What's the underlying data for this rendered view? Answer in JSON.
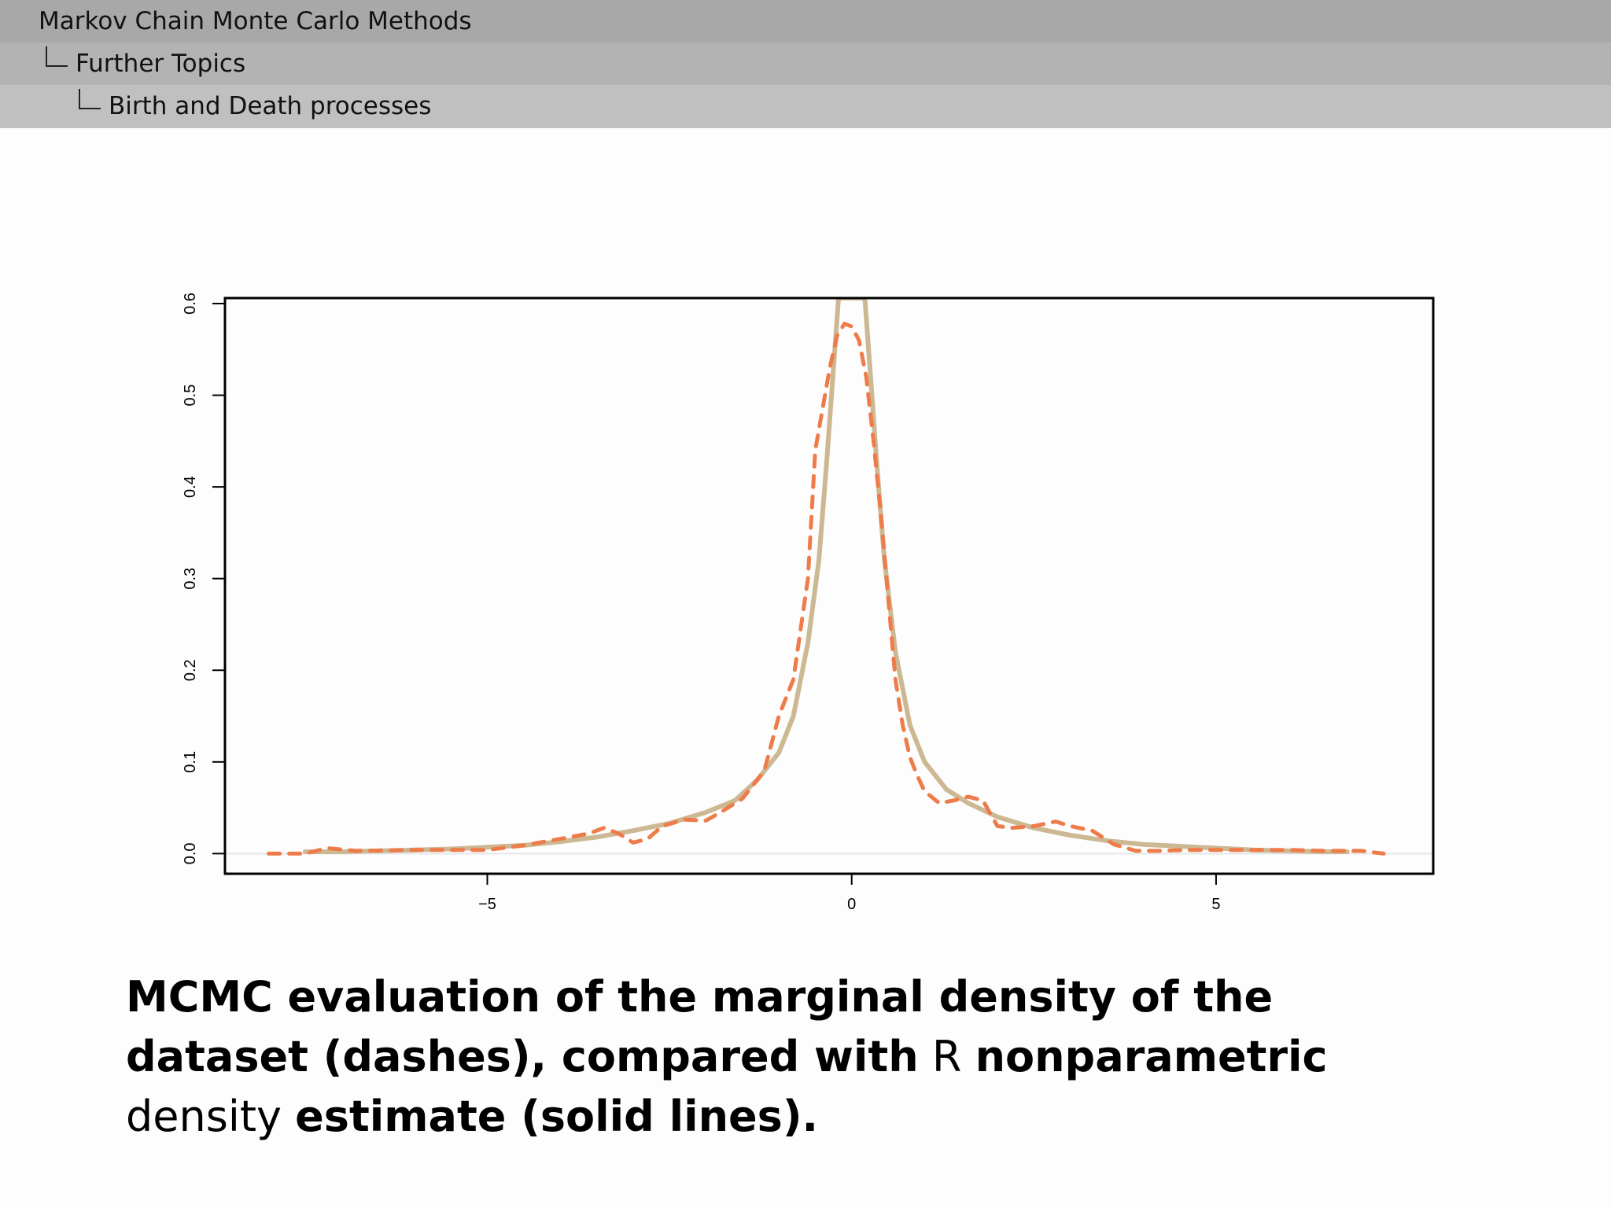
{
  "breadcrumb": {
    "level1": "Markov Chain Monte Carlo Methods",
    "level2": "Further Topics",
    "level3": "Birth and Death processes"
  },
  "caption": {
    "part1": "MCMC evaluation of the marginal density of the dataset (dashes), compared with",
    "r_letter": "R",
    "part2": "nonparametric",
    "part3": "density",
    "part4": "estimate (solid lines)."
  },
  "chart_data": {
    "type": "line",
    "xlim": [
      -8.6,
      7.98
    ],
    "ylim": [
      -0.022,
      0.606
    ],
    "x_ticks": [
      -5,
      0,
      5
    ],
    "x_tick_labels": [
      "−5",
      "0",
      "5"
    ],
    "y_ticks": [
      0.0,
      0.1,
      0.2,
      0.3,
      0.4,
      0.5,
      0.6
    ],
    "y_tick_labels": [
      "0.0",
      "0.1",
      "0.2",
      "0.3",
      "0.4",
      "0.5",
      "0.6"
    ],
    "xlabel": "",
    "ylabel": "",
    "grid": false,
    "zero_line": true,
    "colors": {
      "dashed": "#ee7c4a",
      "solid": "#cdb894"
    },
    "series": [
      {
        "style": "dashed",
        "x": [
          -8.0,
          -7.5,
          -7.2,
          -6.8,
          -6.0,
          -5.5,
          -5.0,
          -4.5,
          -4.0,
          -3.6,
          -3.4,
          -3.2,
          -3.0,
          -2.8,
          -2.6,
          -2.3,
          -2.0,
          -1.8,
          -1.5,
          -1.2,
          -1.0,
          -0.8,
          -0.6,
          -0.5,
          -0.3,
          -0.2,
          -0.1,
          0.0,
          0.1,
          0.2,
          0.3,
          0.4,
          0.5,
          0.6,
          0.7,
          0.8,
          0.9,
          1.0,
          1.2,
          1.4,
          1.6,
          1.8,
          2.0,
          2.2,
          2.5,
          2.8,
          3.0,
          3.3,
          3.6,
          3.9,
          4.2,
          4.6,
          5.0,
          5.5,
          6.0,
          6.5,
          7.0,
          7.3
        ],
        "y": [
          0.0,
          0.0,
          0.006,
          0.003,
          0.004,
          0.004,
          0.004,
          0.009,
          0.016,
          0.022,
          0.028,
          0.022,
          0.012,
          0.016,
          0.03,
          0.037,
          0.036,
          0.045,
          0.06,
          0.09,
          0.15,
          0.19,
          0.3,
          0.44,
          0.53,
          0.565,
          0.578,
          0.575,
          0.56,
          0.52,
          0.45,
          0.37,
          0.28,
          0.19,
          0.14,
          0.105,
          0.085,
          0.068,
          0.055,
          0.058,
          0.062,
          0.058,
          0.03,
          0.028,
          0.03,
          0.035,
          0.03,
          0.025,
          0.01,
          0.003,
          0.003,
          0.004,
          0.004,
          0.004,
          0.004,
          0.003,
          0.003,
          0.0
        ]
      },
      {
        "style": "solid",
        "x": [
          -7.5,
          -7.0,
          -6.5,
          -6.0,
          -5.5,
          -5.0,
          -4.5,
          -4.0,
          -3.5,
          -3.0,
          -2.5,
          -2.0,
          -1.6,
          -1.3,
          -1.0,
          -0.8,
          -0.6,
          -0.45,
          -0.35,
          -0.25,
          -0.18,
          0.18,
          0.25,
          0.35,
          0.45,
          0.6,
          0.8,
          1.0,
          1.3,
          1.6,
          2.0,
          2.5,
          3.0,
          3.5,
          4.0,
          4.5,
          5.0,
          5.5,
          6.0,
          6.5,
          6.8
        ],
        "y": [
          0.002,
          0.002,
          0.003,
          0.004,
          0.005,
          0.007,
          0.009,
          0.013,
          0.018,
          0.025,
          0.033,
          0.045,
          0.058,
          0.08,
          0.11,
          0.15,
          0.23,
          0.32,
          0.42,
          0.53,
          0.606,
          0.606,
          0.53,
          0.42,
          0.32,
          0.22,
          0.14,
          0.1,
          0.07,
          0.055,
          0.04,
          0.028,
          0.02,
          0.014,
          0.01,
          0.008,
          0.006,
          0.004,
          0.003,
          0.002,
          0.002
        ]
      }
    ]
  }
}
